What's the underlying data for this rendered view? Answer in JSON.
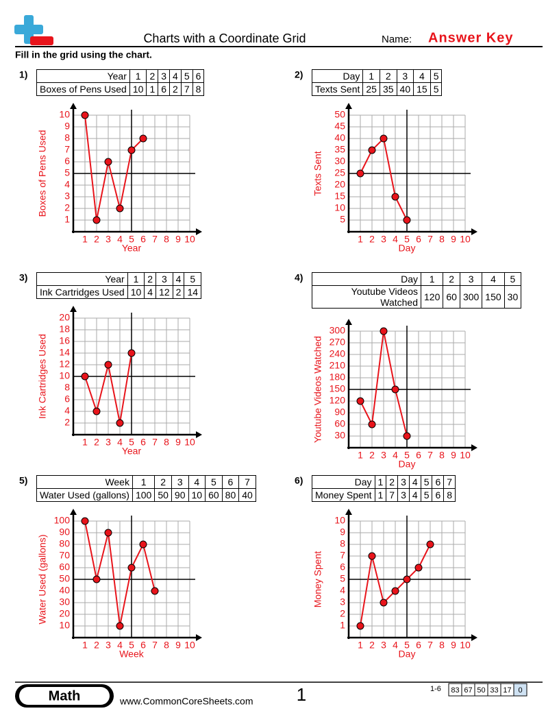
{
  "header": {
    "title": "Charts with a Coordinate Grid",
    "name_label": "Name:",
    "answer_key": "Answer Key"
  },
  "instructions": "Fill in the grid using the chart.",
  "problems": [
    "1)",
    "2)",
    "3)",
    "4)",
    "5)",
    "6)"
  ],
  "chart_data": [
    {
      "type": "line",
      "xlabel": "Year",
      "ylabel": "Boxes of Pens Used",
      "x": [
        1,
        2,
        3,
        4,
        5,
        6
      ],
      "values": [
        10,
        1,
        6,
        2,
        7,
        8
      ],
      "color": "#e8141b",
      "xlim": [
        0,
        10
      ],
      "xticks": [
        1,
        2,
        3,
        4,
        5,
        6,
        7,
        8,
        9,
        10
      ],
      "ylim": [
        0,
        10
      ],
      "yticks": [
        1,
        2,
        3,
        4,
        5,
        6,
        7,
        8,
        9,
        10
      ],
      "grid": true
    },
    {
      "type": "line",
      "xlabel": "Day",
      "ylabel": "Texts Sent",
      "x": [
        1,
        2,
        3,
        4,
        5
      ],
      "values": [
        25,
        35,
        40,
        15,
        5
      ],
      "color": "#e8141b",
      "xlim": [
        0,
        10
      ],
      "xticks": [
        1,
        2,
        3,
        4,
        5,
        6,
        7,
        8,
        9,
        10
      ],
      "ylim": [
        0,
        50
      ],
      "yticks": [
        5,
        10,
        15,
        20,
        25,
        30,
        35,
        40,
        45,
        50
      ],
      "grid": true
    },
    {
      "type": "line",
      "xlabel": "Year",
      "ylabel": "Ink Cartridges Used",
      "x": [
        1,
        2,
        3,
        4,
        5
      ],
      "values": [
        10,
        4,
        12,
        2,
        14
      ],
      "color": "#e8141b",
      "xlim": [
        0,
        10
      ],
      "xticks": [
        1,
        2,
        3,
        4,
        5,
        6,
        7,
        8,
        9,
        10
      ],
      "ylim": [
        0,
        20
      ],
      "yticks": [
        2,
        4,
        6,
        8,
        10,
        12,
        14,
        16,
        18,
        20
      ],
      "grid": true
    },
    {
      "type": "line",
      "xlabel": "Day",
      "ylabel": "Youtube Videos Watched",
      "x": [
        1,
        2,
        3,
        4,
        5
      ],
      "values": [
        120,
        60,
        300,
        150,
        30
      ],
      "color": "#e8141b",
      "xlim": [
        0,
        10
      ],
      "xticks": [
        1,
        2,
        3,
        4,
        5,
        6,
        7,
        8,
        9,
        10
      ],
      "ylim": [
        0,
        300
      ],
      "yticks": [
        30,
        60,
        90,
        120,
        150,
        180,
        210,
        240,
        270,
        300
      ],
      "grid": true
    },
    {
      "type": "line",
      "xlabel": "Week",
      "ylabel": "Water Used (gallons)",
      "x": [
        1,
        2,
        3,
        4,
        5,
        6,
        7
      ],
      "values": [
        100,
        50,
        90,
        10,
        60,
        80,
        40
      ],
      "color": "#e8141b",
      "xlim": [
        0,
        10
      ],
      "xticks": [
        1,
        2,
        3,
        4,
        5,
        6,
        7,
        8,
        9,
        10
      ],
      "ylim": [
        0,
        100
      ],
      "yticks": [
        10,
        20,
        30,
        40,
        50,
        60,
        70,
        80,
        90,
        100
      ],
      "grid": true
    },
    {
      "type": "line",
      "xlabel": "Day",
      "ylabel": "Money Spent",
      "x": [
        1,
        2,
        3,
        4,
        5,
        6,
        7
      ],
      "values": [
        1,
        7,
        3,
        4,
        5,
        6,
        8
      ],
      "color": "#e8141b",
      "xlim": [
        0,
        10
      ],
      "xticks": [
        1,
        2,
        3,
        4,
        5,
        6,
        7,
        8,
        9,
        10
      ],
      "ylim": [
        0,
        10
      ],
      "yticks": [
        1,
        2,
        3,
        4,
        5,
        6,
        7,
        8,
        9,
        10
      ],
      "grid": true
    }
  ],
  "footer": {
    "subject": "Math",
    "website": "www.CommonCoreSheets.com",
    "page": "1",
    "range_label": "1-6",
    "scores": [
      83,
      67,
      50,
      33,
      17,
      0
    ]
  }
}
